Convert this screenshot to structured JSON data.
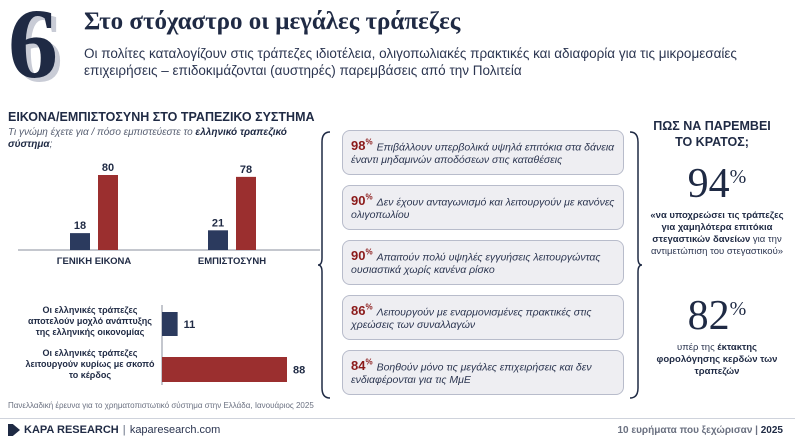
{
  "header": {
    "number": "6",
    "title": "Στο στόχαστρο οι μεγάλες τράπεζες",
    "subtitle": "Οι πολίτες καταλογίζουν στις τράπεζες ιδιοτέλεια, ολιγοπωλιακές πρακτικές και αδιαφορία για τις μικρομεσαίες επιχειρήσεις – επιδοκιμάζονται (αυστηρές) παρεμβάσεις από την Πολιτεία"
  },
  "left": {
    "title": "ΕΙΚΟΝΑ/ΕΜΠΙΣΤΟΣΥΝΗ ΣΤΟ ΤΡΑΠΕΖΙΚΟ ΣΥΣΤΗΜΑ",
    "sub_plain": "Τι γνώμη έχετε για / πόσο εμπιστεύεστε το ",
    "sub_bold": "ελληνικό τραπεζικό σύστημα",
    "sub_end": ";"
  },
  "chart_data": [
    {
      "type": "bar",
      "categories": [
        "ΓΕΝΙΚΗ ΕΙΚΟΝΑ",
        "ΕΜΠΙΣΤΟΣΥΝΗ"
      ],
      "series": [
        {
          "values": [
            18,
            21
          ],
          "color": "#2b3a5e"
        },
        {
          "values": [
            80,
            78
          ],
          "color": "#9b2f2f"
        }
      ],
      "ylim": [
        0,
        80
      ]
    },
    {
      "type": "bar",
      "orientation": "horizontal",
      "categories": [
        "Οι ελληνικές τράπεζες αποτελούν μοχλό ανάπτυξης της ελληνικής οικονομίας",
        "Οι ελληνικές τράπεζες λειτουργούν κυρίως με σκοπό το κέρδος"
      ],
      "values": [
        11,
        88
      ],
      "colors": [
        "#2b3a5e",
        "#9b2f2f"
      ],
      "xlim": [
        0,
        88
      ]
    }
  ],
  "statements": [
    {
      "pct": "98",
      "text": "Επιβάλλουν υπερβολικά υψηλά επιτόκια στα δάνεια έναντι μηδαμινών αποδόσεων στις καταθέσεις"
    },
    {
      "pct": "90",
      "text": "Δεν έχουν ανταγωνισμό και λειτουργούν με κανόνες ολιγοπωλίου"
    },
    {
      "pct": "90",
      "text": "Απαιτούν πολύ υψηλές εγγυήσεις λειτουργώντας ουσιαστικά χωρίς κανένα ρίσκο"
    },
    {
      "pct": "86",
      "text": "Λειτουργούν με εναρμονισμένες πρακτικές στις χρεώσεις των συναλλαγών"
    },
    {
      "pct": "84",
      "text": "Βοηθούν μόνο τις μεγάλες επιχειρήσεις και δεν ενδιαφέρονται για τις ΜμΕ"
    }
  ],
  "right": {
    "title": "ΠΩΣ ΝΑ ΠΑΡΕΜΒΕΙ ΤΟ ΚΡΑΤΟΣ;",
    "stat1": {
      "value": "94",
      "text_bold": "«να υποχρεώσει τις τράπεζες για χαμηλότερα επιτόκια στεγαστικών δανείων",
      "text_plain": " για την αντιμετώπιση του στεγαστικού»"
    },
    "stat2": {
      "value": "82",
      "text_plain": "υπέρ της ",
      "text_bold": "έκτακτης φορολόγησης κερδών των τραπεζών"
    },
    "percent_sign": "%"
  },
  "footer": {
    "source": "Πανελλαδική έρευνα για το χρηματοπιστωτικό σύστημα στην Ελλάδα, Ιανουάριος 2025",
    "brand": "KAPA RESEARCH",
    "site": "kaparesearch.com",
    "right_text": "10 ευρήματα που ξεχώρισαν",
    "right_sep": " | ",
    "year": "2025"
  }
}
